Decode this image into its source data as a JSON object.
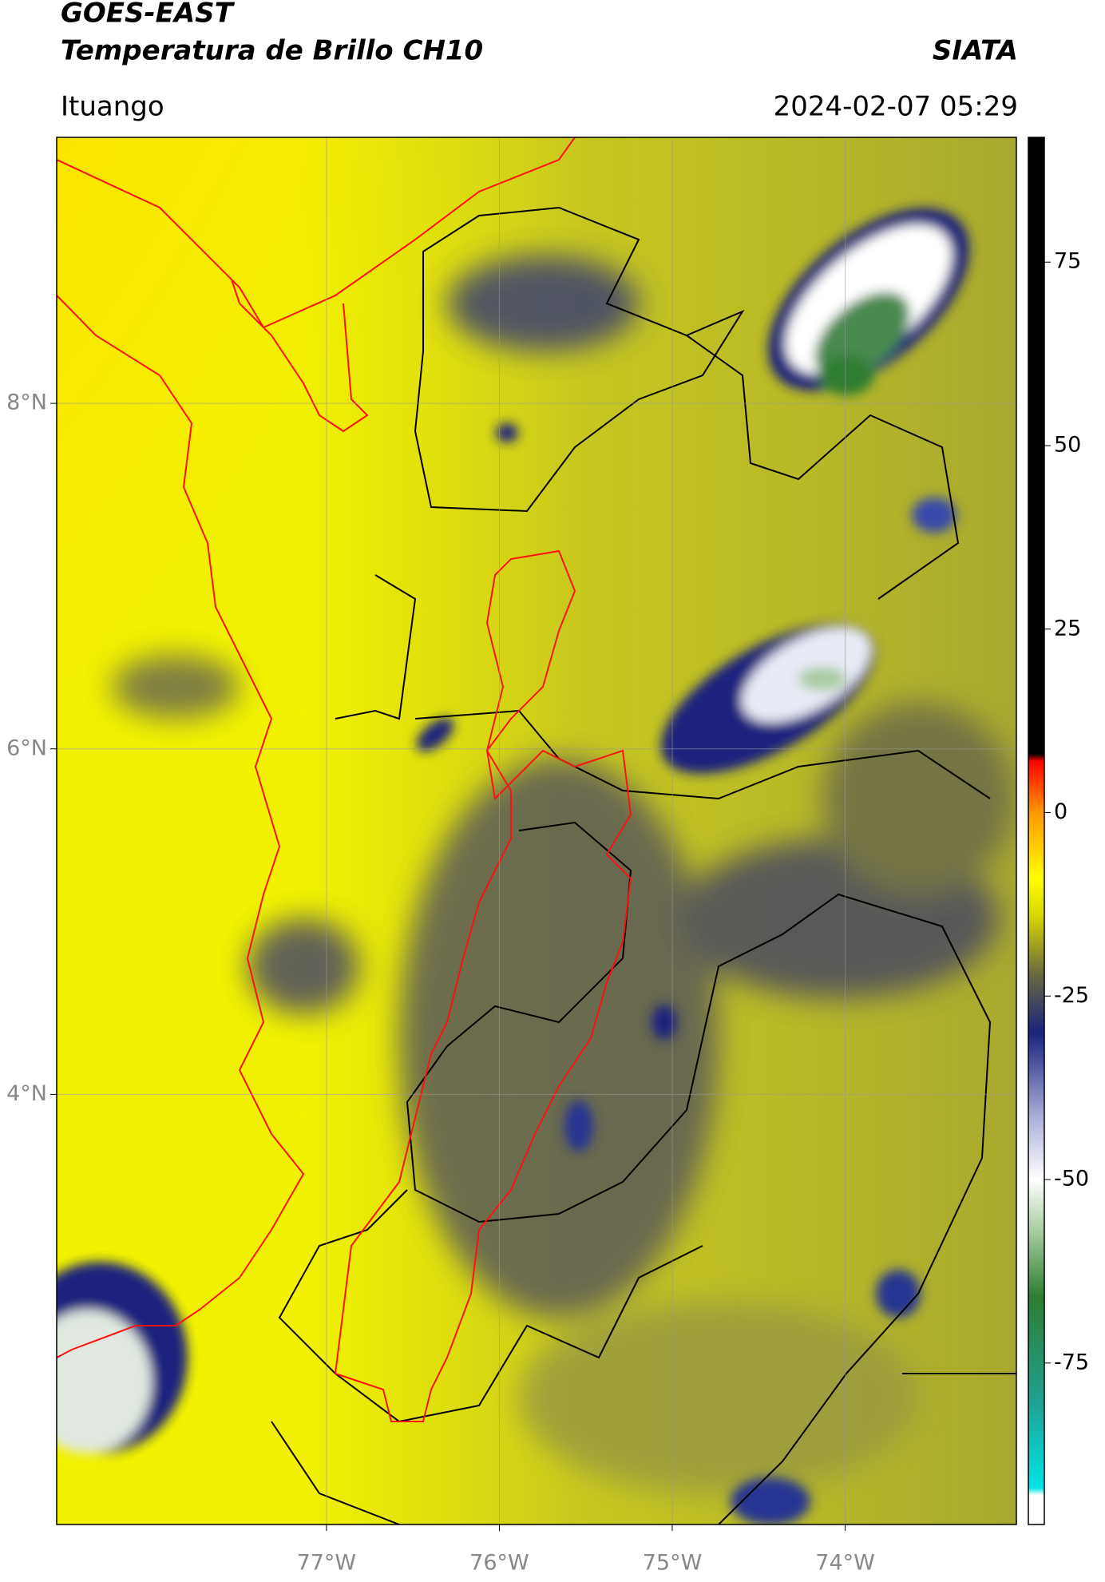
{
  "chart_data": {
    "type": "map",
    "title": "GOES-EAST",
    "subtitle": "Temperatura de Brillo CH10",
    "source": "SIATA",
    "location": "Ituango",
    "datetime": "2024-02-07 05:29",
    "xlim": [
      -78.56,
      -73.01
    ],
    "ylim": [
      1.51,
      9.54
    ],
    "xticks": [
      {
        "value": -77,
        "label": "77°W"
      },
      {
        "value": -76,
        "label": "76°W"
      },
      {
        "value": -75,
        "label": "75°W"
      },
      {
        "value": -74,
        "label": "74°W"
      }
    ],
    "yticks": [
      {
        "value": 8,
        "label": "8°N"
      },
      {
        "value": 6,
        "label": "6°N"
      },
      {
        "value": 4,
        "label": "4°N"
      }
    ],
    "grid": true,
    "colorbar": {
      "lim": [
        -97,
        92
      ],
      "ticks": [
        75,
        50,
        25,
        0,
        -25,
        -50,
        -75
      ],
      "stops": [
        {
          "value": -97,
          "color": "#ffffff"
        },
        {
          "value": -93,
          "color": "#ffffff"
        },
        {
          "value": -92,
          "color": "#00e5e5"
        },
        {
          "value": -80,
          "color": "#20a090"
        },
        {
          "value": -66,
          "color": "#2e7d32"
        },
        {
          "value": -57,
          "color": "#a8cca0"
        },
        {
          "value": -50,
          "color": "#ffffff"
        },
        {
          "value": -42,
          "color": "#b0b4dc"
        },
        {
          "value": -30,
          "color": "#1a237e"
        },
        {
          "value": -22,
          "color": "#6a6a40"
        },
        {
          "value": -14,
          "color": "#d8d800"
        },
        {
          "value": -9,
          "color": "#ffff00"
        },
        {
          "value": 0,
          "color": "#ff9800"
        },
        {
          "value": 7,
          "color": "#ff0000"
        },
        {
          "value": 8,
          "color": "#000000"
        },
        {
          "value": 92,
          "color": "#000000"
        }
      ]
    }
  }
}
